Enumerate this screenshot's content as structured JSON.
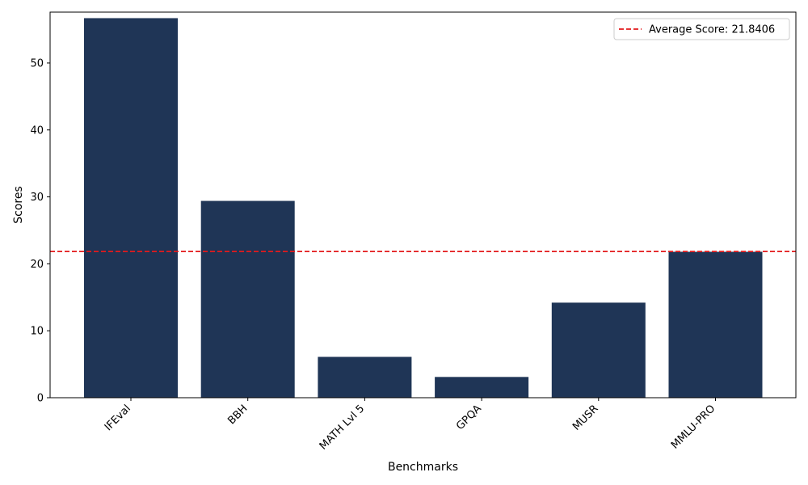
{
  "chart_data": {
    "type": "bar",
    "title": "",
    "xlabel": "Benchmarks",
    "ylabel": "Scores",
    "categories": [
      "IFEval",
      "BBH",
      "MATH Lvl 5",
      "GPQA",
      "MUSR",
      "MMLU-PRO"
    ],
    "values": [
      56.7,
      29.4,
      6.1,
      3.1,
      14.2,
      21.8
    ],
    "ylim": [
      0,
      57.6
    ],
    "yticks": [
      0,
      10,
      20,
      30,
      40,
      50
    ],
    "grid": false,
    "bar_color": "#1f3556",
    "reference_line": {
      "value": 21.8406,
      "style": "dashed",
      "color": "#e31a1c",
      "label": "Average Score: 21.8406"
    },
    "legend": {
      "position": "top-right",
      "entries": [
        "Average Score: 21.8406"
      ]
    }
  }
}
